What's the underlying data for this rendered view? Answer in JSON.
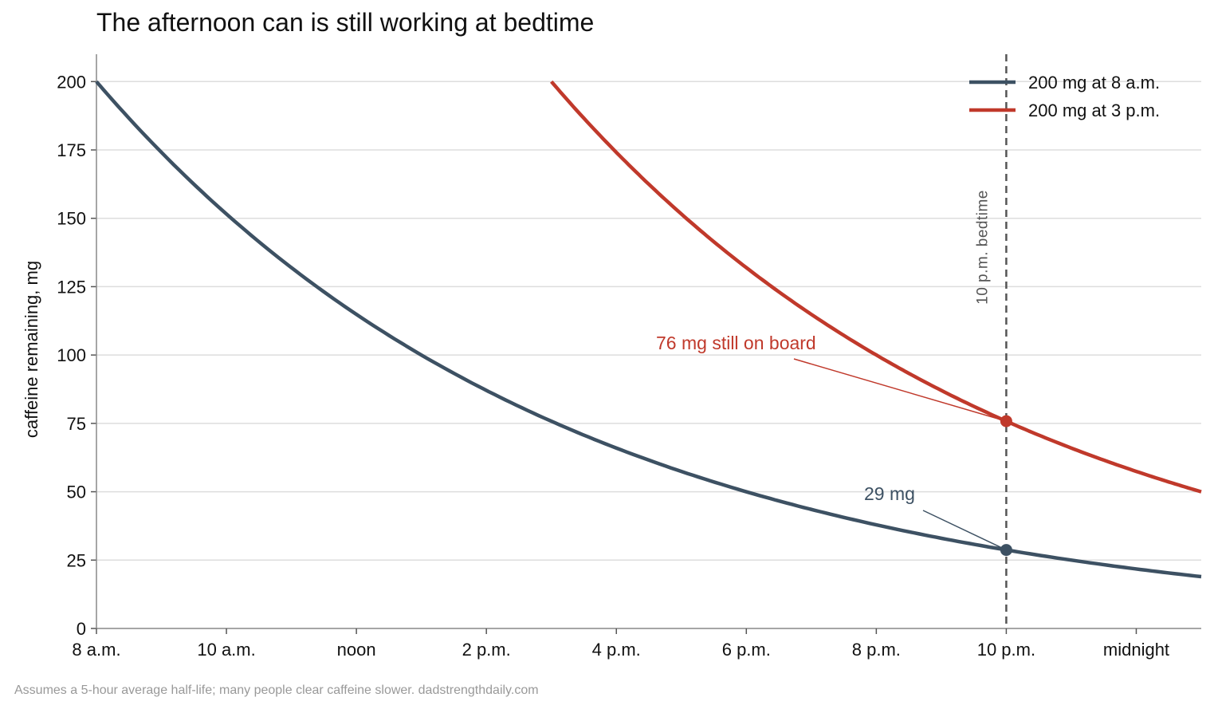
{
  "title": "The afternoon can is still working at bedtime",
  "footnote": "Assumes a 5-hour average half-life; many people clear caffeine slower. dadstrengthdaily.com",
  "chart_data": {
    "type": "line",
    "title": "The afternoon can is still working at bedtime",
    "xlabel": "",
    "ylabel": "caffeine remaining, mg",
    "x_ticks": [
      {
        "hour": 8,
        "label": "8 a.m."
      },
      {
        "hour": 10,
        "label": "10 a.m."
      },
      {
        "hour": 12,
        "label": "noon"
      },
      {
        "hour": 14,
        "label": "2 p.m."
      },
      {
        "hour": 16,
        "label": "4 p.m."
      },
      {
        "hour": 18,
        "label": "6 p.m."
      },
      {
        "hour": 20,
        "label": "8 p.m."
      },
      {
        "hour": 22,
        "label": "10 p.m."
      },
      {
        "hour": 24,
        "label": "midnight"
      }
    ],
    "y_ticks": [
      0,
      25,
      50,
      75,
      100,
      125,
      150,
      175,
      200
    ],
    "xlim": [
      8,
      25
    ],
    "ylim": [
      0,
      210
    ],
    "grid": "horizontal",
    "legend_position": "top-right",
    "series": [
      {
        "name": "200 mg at 8 a.m.",
        "color": "#3d5163",
        "x": [
          8,
          9,
          10,
          11,
          12,
          13,
          14,
          15,
          16,
          17,
          18,
          19,
          20,
          21,
          22,
          23,
          24,
          25
        ],
        "y": [
          200,
          174.1,
          151.6,
          132.0,
          114.9,
          100.0,
          87.1,
          75.8,
          66.0,
          57.4,
          50.0,
          43.5,
          37.9,
          33.0,
          28.7,
          25.0,
          21.8,
          18.9
        ]
      },
      {
        "name": "200 mg at 3 p.m.",
        "color": "#c0392b",
        "x": [
          15,
          16,
          17,
          18,
          19,
          20,
          21,
          22,
          23,
          24,
          25
        ],
        "y": [
          200,
          174.1,
          151.6,
          132.0,
          114.9,
          100.0,
          87.1,
          75.8,
          66.0,
          57.4,
          50.0
        ]
      }
    ],
    "reference_line": {
      "x": 22,
      "label": "10 p.m. bedtime",
      "style": "dashed"
    },
    "annotations": [
      {
        "text": "76 mg still on board",
        "x": 22,
        "y": 75.8,
        "color": "#c0392b"
      },
      {
        "text": "29 mg",
        "x": 22,
        "y": 28.7,
        "color": "#3d5163"
      }
    ]
  }
}
